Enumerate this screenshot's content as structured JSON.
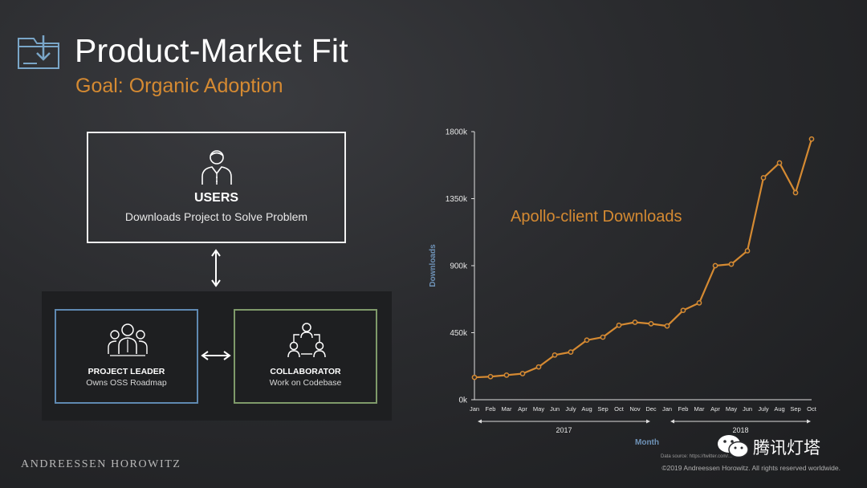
{
  "slide": {
    "title": "Product-Market Fit",
    "subtitle": "Goal: Organic Adoption",
    "brand": "ANDREESSEN HOROWITZ",
    "copyright": "©2019 Andreessen Horowitz. All rights reserved worldwide.",
    "data_source": "Data source: https://twitter.com/...",
    "watermark": "腾讯灯塔",
    "icons": {
      "header": "download-folder-icon",
      "users": "user-icon",
      "leader": "team-leader-icon",
      "collaborator": "collaborator-network-icon",
      "watermark": "wechat-icon"
    }
  },
  "diagram": {
    "users": {
      "label": "USERS",
      "description": "Downloads Project to Solve Problem"
    },
    "leader": {
      "label": "PROJECT LEADER",
      "description": "Owns OSS Roadmap"
    },
    "collaborator": {
      "label": "COLLABORATOR",
      "description": "Work on Codebase"
    },
    "colors": {
      "leader_border": "#5f89b1",
      "collaborator_border": "#7f9a6a",
      "users_border": "#f2f2f2"
    }
  },
  "chart_data": {
    "type": "line",
    "title": "Apollo-client Downloads",
    "xlabel": "Month",
    "ylabel": "Downloads",
    "x": [
      "Jan",
      "Feb",
      "Mar",
      "Apr",
      "May",
      "Jun",
      "July",
      "Aug",
      "Sep",
      "Oct",
      "Nov",
      "Dec",
      "Jan",
      "Feb",
      "Mar",
      "Apr",
      "May",
      "Jun",
      "July",
      "Aug",
      "Sep",
      "Oct"
    ],
    "year_groups": [
      {
        "label": "2017",
        "start": 0,
        "end": 11
      },
      {
        "label": "2018",
        "start": 12,
        "end": 21
      }
    ],
    "series": [
      {
        "values": [
          150,
          155,
          165,
          175,
          220,
          300,
          320,
          400,
          420,
          500,
          520,
          510,
          495,
          600,
          650,
          900,
          910,
          1000,
          1490,
          1590,
          1390,
          1750
        ]
      }
    ],
    "yticks": [
      "0k",
      "450k",
      "900k",
      "1350k",
      "1800k"
    ],
    "ytick_values": [
      0,
      450,
      900,
      1350,
      1800
    ],
    "ylim": [
      0,
      1800
    ],
    "line_color": "#d58a32",
    "axis_label_color": "#6f93b8",
    "grid": false
  }
}
